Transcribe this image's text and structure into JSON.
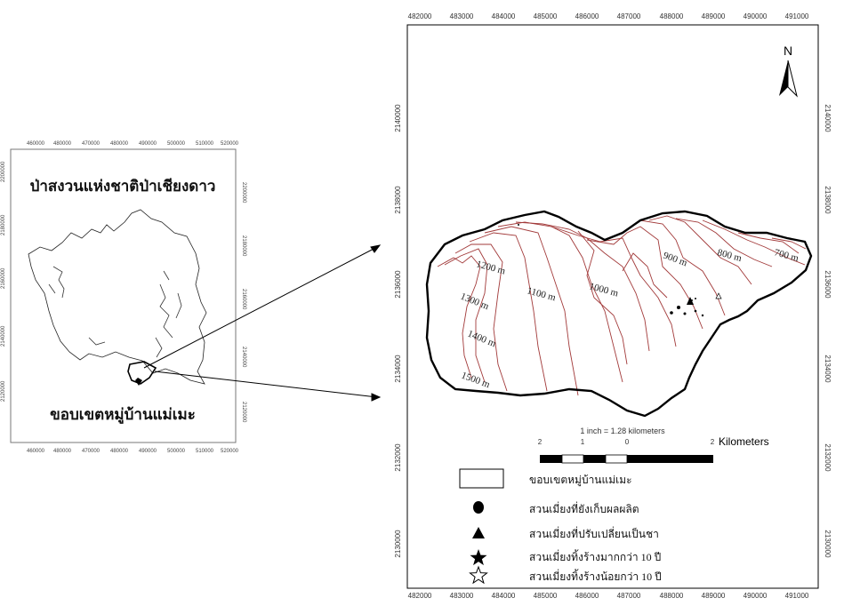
{
  "inset_map": {
    "title": "ป่าสงวนแห่งชาติป่าเชียงดาว",
    "label": "ขอบเขตหมู่บ้านแม่เมะ",
    "x_ticks": [
      "460000",
      "480000",
      "470000",
      "480000",
      "490000",
      "500000",
      "510000",
      "520000"
    ],
    "y_ticks": [
      "2200000",
      "2180000",
      "2160000",
      "2140000",
      "2120000"
    ]
  },
  "main_map": {
    "x_ticks": [
      "482000",
      "483000",
      "484000",
      "485000",
      "486000",
      "487000",
      "488000",
      "489000",
      "490000",
      "491000"
    ],
    "y_ticks": [
      "2140000",
      "2138000",
      "2136000",
      "2134000",
      "2132000",
      "2130000"
    ],
    "north_label": "N",
    "contours": [
      "1500 m",
      "1400 m",
      "1300 m",
      "1200 m",
      "1100 m",
      "1000 m",
      "900 m",
      "800 m",
      "700 m"
    ],
    "scale_text": "1 inch = 1.28 kilometers",
    "scale_ticks": [
      "2",
      "1",
      "0",
      "2"
    ],
    "scale_unit": "Kilometers"
  },
  "legend": {
    "items": [
      {
        "symbol": "rect-icon",
        "label": "ขอบเขตหมู่บ้านแม่เมะ"
      },
      {
        "symbol": "circle-icon",
        "label": "สวนเมี่ยงที่ยังเก็บผลผลิต"
      },
      {
        "symbol": "triangle-icon",
        "label": "สวนเมี่ยงที่ปรับเปลี่ยนเป็นชา"
      },
      {
        "symbol": "filled-star-icon",
        "label": "สวนเมี่ยงทิ้งร้างมากกว่า 10 ปี"
      },
      {
        "symbol": "hollow-star-icon",
        "label": "สวนเมี่ยงทิ้งร้างน้อยกว่า 10 ปี"
      }
    ]
  },
  "colors": {
    "contour": "#a23a3a",
    "boundary": "#000000"
  }
}
